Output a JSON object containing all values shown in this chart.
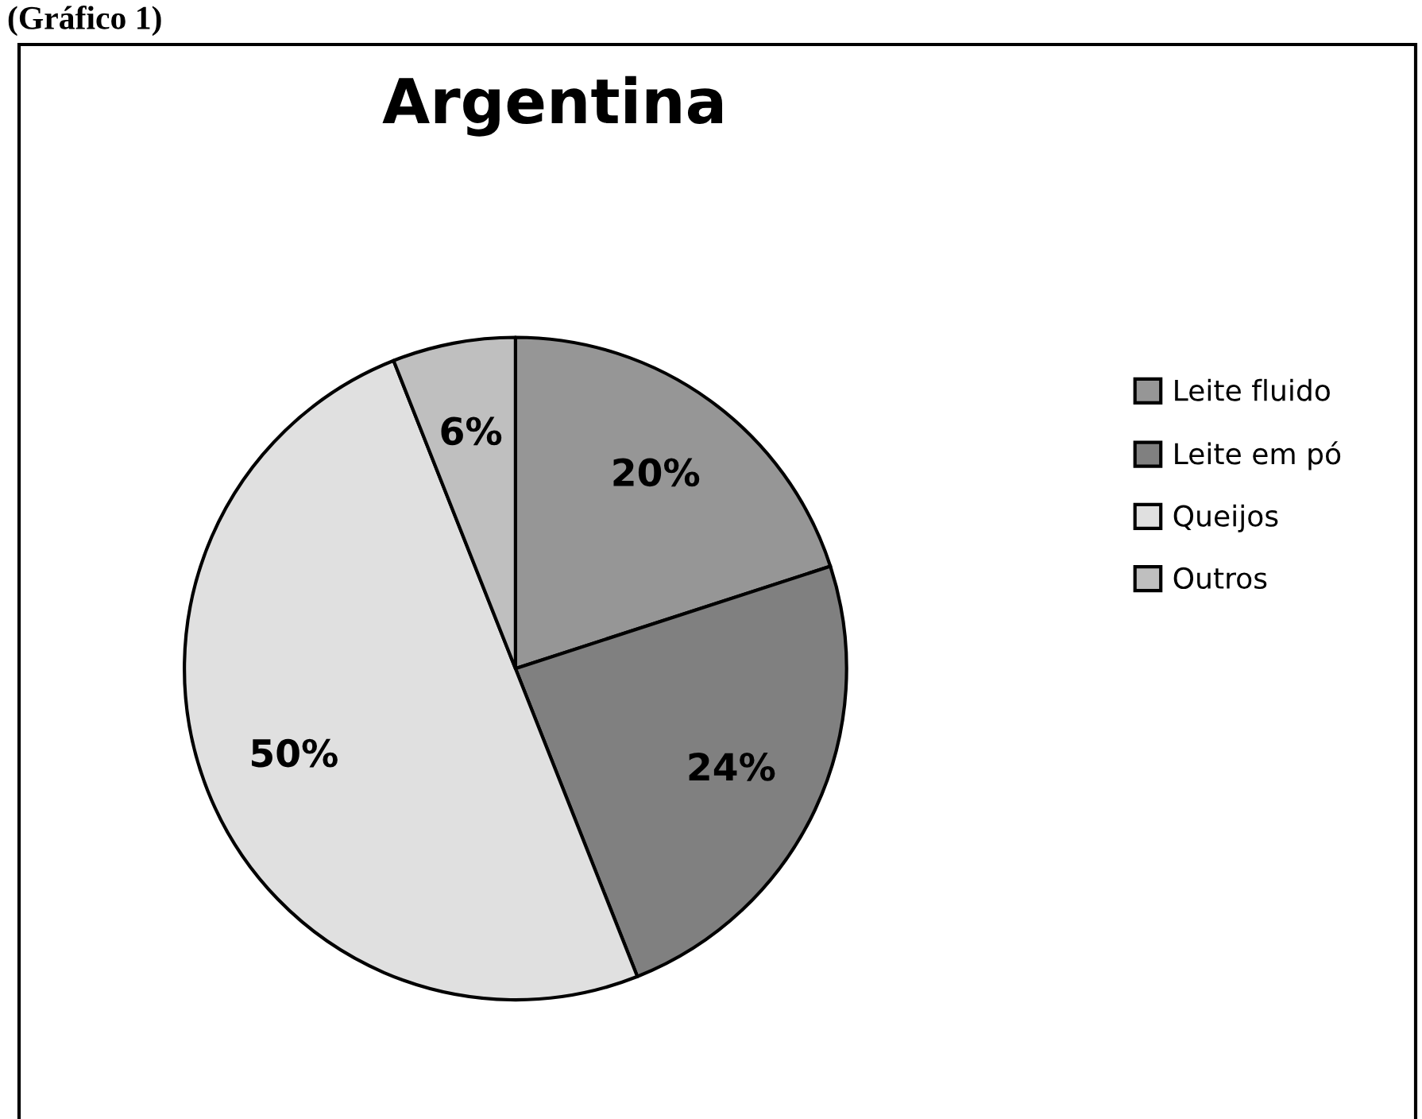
{
  "chart_data": {
    "type": "pie",
    "title": "Argentina",
    "categories": [
      "Leite fluido",
      "Leite em pó",
      "Queijos",
      "Outros"
    ],
    "values": [
      20,
      24,
      50,
      6
    ],
    "colors": [
      "#969696",
      "#808080",
      "#e0e0e0",
      "#bfbfbf"
    ],
    "value_labels": [
      "20%",
      "24%",
      "50%",
      "6%"
    ],
    "legend": "right",
    "annotations": [
      "(Gráfico 1)"
    ]
  }
}
